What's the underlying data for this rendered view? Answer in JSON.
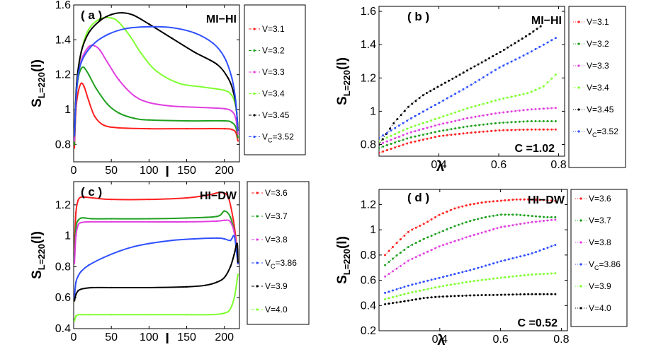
{
  "colors": {
    "red": "#ff2020",
    "green": "#20a020",
    "magenta": "#e040e0",
    "lime": "#80ff30",
    "black": "#000000",
    "blue": "#3050ff"
  },
  "chart_data": [
    {
      "id": "a",
      "type": "line",
      "panel_label": "( a )",
      "annotation": "MI−HI",
      "xlabel": "l",
      "ylabel_main": "S",
      "ylabel_sub": "L=220",
      "ylabel_tail": "(l)",
      "xlim": [
        0,
        220
      ],
      "ylim": [
        0.7,
        1.6
      ],
      "xticks": [
        "0",
        "50",
        "100",
        "150",
        "200"
      ],
      "xtick_values": [
        0,
        50,
        100,
        150,
        200
      ],
      "yticks": [
        "0.8",
        "1",
        "1.2",
        "1.4",
        "1.6"
      ],
      "ytick_values": [
        0.8,
        1.0,
        1.2,
        1.4,
        1.6
      ],
      "series": [
        {
          "legend": "V=3.1",
          "legend_sub": "",
          "color": "red",
          "x": [
            1,
            3,
            6,
            10,
            14,
            20,
            28,
            40,
            60,
            100,
            150,
            200,
            210,
            215,
            218
          ],
          "y": [
            0.78,
            1.0,
            1.1,
            1.15,
            1.13,
            1.05,
            0.96,
            0.91,
            0.895,
            0.89,
            0.89,
            0.89,
            0.885,
            0.87,
            0.82
          ]
        },
        {
          "legend": "V=3.2",
          "legend_sub": "",
          "color": "green",
          "x": [
            1,
            3,
            6,
            10,
            14,
            20,
            30,
            45,
            60,
            80,
            100,
            150,
            200,
            210,
            215,
            218
          ],
          "y": [
            0.8,
            1.05,
            1.18,
            1.235,
            1.24,
            1.2,
            1.12,
            1.03,
            0.98,
            0.95,
            0.94,
            0.935,
            0.935,
            0.925,
            0.9,
            0.84
          ]
        },
        {
          "legend": "V=3.3",
          "legend_sub": "",
          "color": "magenta",
          "x": [
            1,
            4,
            10,
            20,
            28,
            35,
            45,
            60,
            80,
            100,
            130,
            180,
            200,
            210,
            215,
            218
          ],
          "y": [
            0.82,
            1.12,
            1.28,
            1.36,
            1.365,
            1.34,
            1.27,
            1.17,
            1.08,
            1.04,
            1.02,
            1.01,
            1.005,
            0.99,
            0.95,
            0.86
          ]
        },
        {
          "legend": "V=3.4",
          "legend_sub": "",
          "color": "lime",
          "x": [
            1,
            4,
            10,
            20,
            35,
            50,
            60,
            75,
            90,
            110,
            140,
            170,
            200,
            210,
            215,
            218
          ],
          "y": [
            0.85,
            1.15,
            1.33,
            1.46,
            1.52,
            1.525,
            1.5,
            1.42,
            1.32,
            1.22,
            1.15,
            1.13,
            1.11,
            1.08,
            1.02,
            0.9
          ]
        },
        {
          "legend": "V=3.45",
          "legend_sub": "",
          "color": "black",
          "x": [
            1,
            4,
            10,
            20,
            35,
            50,
            65,
            80,
            100,
            130,
            160,
            190,
            205,
            212,
            216,
            218
          ],
          "y": [
            0.85,
            1.15,
            1.33,
            1.44,
            1.51,
            1.545,
            1.555,
            1.54,
            1.49,
            1.41,
            1.33,
            1.26,
            1.18,
            1.1,
            1.0,
            0.88
          ]
        },
        {
          "legend": "V",
          "legend_sub": "C",
          "legend_tail": "=3.52",
          "color": "blue",
          "x": [
            1,
            4,
            10,
            25,
            45,
            70,
            100,
            130,
            160,
            185,
            200,
            210,
            215,
            218
          ],
          "y": [
            0.85,
            1.12,
            1.27,
            1.37,
            1.43,
            1.465,
            1.475,
            1.47,
            1.44,
            1.38,
            1.3,
            1.18,
            1.05,
            0.88
          ]
        }
      ]
    },
    {
      "id": "b",
      "type": "scatter",
      "panel_label": "( b )",
      "annotation": "MI−HI",
      "annotation2": "C =1.02",
      "xlabel": "λ",
      "ylabel_main": "S",
      "ylabel_sub": "L=220",
      "ylabel_tail": "(l)",
      "xlim": [
        0.2,
        0.82
      ],
      "ylim": [
        0.73,
        1.63
      ],
      "xticks": [
        "0.4",
        "0.6",
        "0.8"
      ],
      "xtick_values": [
        0.4,
        0.6,
        0.8
      ],
      "yticks": [
        "0.8",
        "1",
        "1.2",
        "1.4",
        "1.6"
      ],
      "ytick_values": [
        0.8,
        1.0,
        1.2,
        1.4,
        1.6
      ],
      "series": [
        {
          "legend": "V=3.1",
          "legend_sub": "",
          "color": "red",
          "x": [
            0.2,
            0.3,
            0.4,
            0.5,
            0.6,
            0.7,
            0.79
          ],
          "y": [
            0.75,
            0.81,
            0.85,
            0.87,
            0.885,
            0.89,
            0.89
          ]
        },
        {
          "legend": "V=3.2",
          "legend_sub": "",
          "color": "green",
          "x": [
            0.2,
            0.3,
            0.4,
            0.5,
            0.6,
            0.7,
            0.79
          ],
          "y": [
            0.78,
            0.84,
            0.88,
            0.91,
            0.93,
            0.94,
            0.94
          ]
        },
        {
          "legend": "V=3.3",
          "legend_sub": "",
          "color": "magenta",
          "x": [
            0.2,
            0.3,
            0.4,
            0.5,
            0.6,
            0.7,
            0.79
          ],
          "y": [
            0.8,
            0.87,
            0.92,
            0.96,
            0.99,
            1.01,
            1.02
          ]
        },
        {
          "legend": "V=3.4",
          "legend_sub": "",
          "color": "lime",
          "x": [
            0.2,
            0.3,
            0.4,
            0.5,
            0.6,
            0.7,
            0.75,
            0.79
          ],
          "y": [
            0.82,
            0.9,
            0.96,
            1.02,
            1.07,
            1.11,
            1.15,
            1.22
          ]
        },
        {
          "legend": "V=3.45",
          "legend_sub": "",
          "color": "black",
          "x": [
            0.2,
            0.25,
            0.3,
            0.35,
            0.4,
            0.5,
            0.6,
            0.7,
            0.74
          ],
          "y": [
            0.8,
            0.93,
            1.03,
            1.1,
            1.15,
            1.25,
            1.35,
            1.46,
            1.51
          ]
        },
        {
          "legend": "V",
          "legend_sub": "C",
          "legend_tail": "=3.52",
          "color": "blue",
          "x": [
            0.2,
            0.3,
            0.4,
            0.5,
            0.6,
            0.7,
            0.79
          ],
          "y": [
            0.84,
            0.95,
            1.05,
            1.15,
            1.26,
            1.35,
            1.44
          ]
        }
      ]
    },
    {
      "id": "c",
      "type": "line",
      "panel_label": "( c )",
      "annotation": "HI−DW",
      "xlabel": "l",
      "ylabel_main": "S",
      "ylabel_sub": "L=220",
      "ylabel_tail": "(l)",
      "xlim": [
        0,
        220
      ],
      "ylim": [
        0.4,
        1.35
      ],
      "xticks": [
        "0",
        "50",
        "100",
        "150",
        "200"
      ],
      "xtick_values": [
        0,
        50,
        100,
        150,
        200
      ],
      "yticks": [
        "0.4",
        "0.6",
        "0.8",
        "1",
        "1.2"
      ],
      "ytick_values": [
        0.4,
        0.6,
        0.8,
        1.0,
        1.2
      ],
      "series": [
        {
          "legend": "V=3.6",
          "legend_sub": "",
          "color": "red",
          "x": [
            1,
            3,
            6,
            10,
            15,
            25,
            50,
            100,
            150,
            180,
            195,
            205,
            212,
            216,
            218
          ],
          "y": [
            0.9,
            1.15,
            1.23,
            1.25,
            1.25,
            1.245,
            1.235,
            1.235,
            1.245,
            1.265,
            1.28,
            1.25,
            1.1,
            0.95,
            0.82
          ]
        },
        {
          "legend": "V=3.7",
          "legend_sub": "",
          "color": "green",
          "x": [
            1,
            3,
            6,
            10,
            15,
            25,
            50,
            100,
            150,
            190,
            200,
            208,
            214,
            218
          ],
          "y": [
            0.85,
            1.05,
            1.1,
            1.115,
            1.115,
            1.11,
            1.11,
            1.11,
            1.115,
            1.125,
            1.16,
            1.12,
            1.0,
            0.82
          ]
        },
        {
          "legend": "V=3.8",
          "legend_sub": "",
          "color": "magenta",
          "x": [
            1,
            3,
            6,
            10,
            20,
            50,
            100,
            150,
            190,
            200,
            208,
            214,
            218
          ],
          "y": [
            0.82,
            1.0,
            1.07,
            1.085,
            1.09,
            1.09,
            1.09,
            1.09,
            1.095,
            1.1,
            1.09,
            1.0,
            0.82
          ]
        },
        {
          "legend": "V",
          "legend_sub": "C",
          "legend_tail": "=3.86",
          "color": "blue",
          "x": [
            1,
            3,
            6,
            10,
            20,
            40,
            60,
            80,
            100,
            130,
            160,
            190,
            200,
            208,
            213,
            216,
            218
          ],
          "y": [
            0.6,
            0.7,
            0.74,
            0.77,
            0.81,
            0.86,
            0.9,
            0.93,
            0.95,
            0.97,
            0.98,
            0.985,
            0.98,
            0.97,
            1.0,
            0.9,
            0.82
          ]
        },
        {
          "legend": "V=3.9",
          "legend_sub": "",
          "color": "black",
          "x": [
            1,
            3,
            6,
            10,
            15,
            25,
            50,
            100,
            150,
            175,
            190,
            200,
            208,
            213,
            217,
            218
          ],
          "y": [
            0.58,
            0.62,
            0.645,
            0.655,
            0.66,
            0.665,
            0.665,
            0.665,
            0.67,
            0.68,
            0.7,
            0.73,
            0.8,
            0.88,
            0.95,
            0.83
          ]
        },
        {
          "legend": "V=4.0",
          "legend_sub": "",
          "color": "lime",
          "x": [
            1,
            3,
            6,
            10,
            20,
            50,
            100,
            150,
            180,
            195,
            205,
            210,
            214,
            217,
            218
          ],
          "y": [
            0.45,
            0.48,
            0.49,
            0.49,
            0.49,
            0.49,
            0.49,
            0.49,
            0.49,
            0.495,
            0.51,
            0.55,
            0.62,
            0.72,
            0.75
          ]
        }
      ]
    },
    {
      "id": "d",
      "type": "scatter",
      "panel_label": "( d )",
      "annotation": "HI−DW",
      "annotation2": "C =0.52",
      "xlabel": "λ",
      "ylabel_main": "S",
      "ylabel_sub": "L=220",
      "ylabel_tail": "(l)",
      "xlim": [
        0.2,
        0.82
      ],
      "ylim": [
        0.2,
        1.32
      ],
      "xticks": [
        "0.4",
        "0.6",
        "0.8"
      ],
      "xtick_values": [
        0.4,
        0.6,
        0.8
      ],
      "yticks": [
        "0.2",
        "0.4",
        "0.6",
        "0.8",
        "1",
        "1.2"
      ],
      "ytick_values": [
        0.2,
        0.4,
        0.6,
        0.8,
        1.0,
        1.2
      ],
      "series": [
        {
          "legend": "V=3.6",
          "legend_sub": "",
          "color": "red",
          "x": [
            0.22,
            0.26,
            0.3,
            0.35,
            0.4,
            0.45,
            0.5,
            0.55,
            0.6,
            0.65,
            0.7,
            0.75,
            0.78
          ],
          "y": [
            0.8,
            0.9,
            0.99,
            1.05,
            1.12,
            1.17,
            1.2,
            1.22,
            1.23,
            1.24,
            1.24,
            1.235,
            1.23
          ]
        },
        {
          "legend": "V=3.7",
          "legend_sub": "",
          "color": "green",
          "x": [
            0.22,
            0.26,
            0.3,
            0.35,
            0.4,
            0.45,
            0.5,
            0.55,
            0.6,
            0.65,
            0.7,
            0.75,
            0.78
          ],
          "y": [
            0.72,
            0.8,
            0.87,
            0.93,
            0.98,
            1.03,
            1.07,
            1.1,
            1.12,
            1.12,
            1.11,
            1.1,
            1.1
          ]
        },
        {
          "legend": "V=3.8",
          "legend_sub": "",
          "color": "magenta",
          "x": [
            0.22,
            0.3,
            0.4,
            0.5,
            0.6,
            0.7,
            0.78
          ],
          "y": [
            0.63,
            0.76,
            0.87,
            0.95,
            1.02,
            1.06,
            1.08
          ]
        },
        {
          "legend": "V",
          "legend_sub": "C",
          "legend_tail": "=3.86",
          "color": "blue",
          "x": [
            0.22,
            0.3,
            0.4,
            0.5,
            0.6,
            0.7,
            0.78
          ],
          "y": [
            0.5,
            0.56,
            0.62,
            0.68,
            0.75,
            0.81,
            0.88
          ]
        },
        {
          "legend": "V=3.9",
          "legend_sub": "",
          "color": "lime",
          "x": [
            0.22,
            0.3,
            0.4,
            0.5,
            0.6,
            0.7,
            0.78
          ],
          "y": [
            0.45,
            0.5,
            0.55,
            0.59,
            0.62,
            0.645,
            0.655
          ]
        },
        {
          "legend": "V=4.0",
          "legend_sub": "",
          "color": "black",
          "x": [
            0.22,
            0.3,
            0.35,
            0.4,
            0.5,
            0.6,
            0.7,
            0.78
          ],
          "y": [
            0.41,
            0.44,
            0.46,
            0.47,
            0.48,
            0.485,
            0.49,
            0.49
          ]
        }
      ]
    }
  ]
}
